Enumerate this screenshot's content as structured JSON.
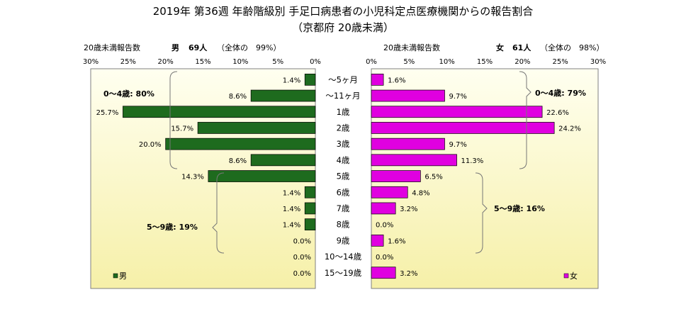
{
  "title": "2019年 第36週 年齢階級別 手足口病患者の小児科定点医療機関からの報告割合",
  "subtitle": "（京都府 20歳未満）",
  "colors": {
    "male": "#1e6b1e",
    "female": "#e000e0",
    "panel_bg_top": "#fffff0",
    "panel_bg_bottom": "#f6f0a8"
  },
  "male_header": {
    "label": "20歳未満報告数",
    "sex": "男",
    "count": "69人",
    "share": "（全体の　99%）"
  },
  "female_header": {
    "label": "20歳未満報告数",
    "sex": "女",
    "count": "61人",
    "share": "（全体の　98%）"
  },
  "male_group_0_4": "0～4歳: 80%",
  "male_group_5_9": "5～9歳: 19%",
  "female_group_0_4": "0～4歳: 79%",
  "female_group_5_9": "5～9歳: 16%",
  "legend_male": "男",
  "legend_female": "女",
  "chart_data": {
    "type": "bar",
    "orientation": "horizontal",
    "layout": "population-pyramid",
    "categories": [
      "～5ヶ月",
      "～11ヶ月",
      "1歳",
      "2歳",
      "3歳",
      "4歳",
      "5歳",
      "6歳",
      "7歳",
      "8歳",
      "9歳",
      "10～14歳",
      "15～19歳"
    ],
    "series": [
      {
        "name": "男",
        "values": [
          1.4,
          8.6,
          25.7,
          15.7,
          20.0,
          8.6,
          14.3,
          1.4,
          1.4,
          1.4,
          0.0,
          0.0,
          0.0
        ],
        "labels": [
          "1.4%",
          "8.6%",
          "25.7%",
          "15.7%",
          "20.0%",
          "8.6%",
          "14.3%",
          "1.4%",
          "1.4%",
          "1.4%",
          "0.0%",
          "0.0%",
          "0.0%"
        ]
      },
      {
        "name": "女",
        "values": [
          1.6,
          9.7,
          22.6,
          24.2,
          9.7,
          11.3,
          6.5,
          4.8,
          3.2,
          0.0,
          1.6,
          0.0,
          3.2
        ],
        "labels": [
          "1.6%",
          "9.7%",
          "22.6%",
          "24.2%",
          "9.7%",
          "11.3%",
          "6.5%",
          "4.8%",
          "3.2%",
          "0.0%",
          "1.6%",
          "0.0%",
          "3.2%"
        ]
      }
    ],
    "xlim": [
      0,
      30
    ],
    "male_ticks": [
      "30%",
      "25%",
      "20%",
      "15%",
      "10%",
      "5%",
      "0%"
    ],
    "female_ticks": [
      "0%",
      "5%",
      "10%",
      "15%",
      "20%",
      "25%",
      "30%"
    ],
    "grid": false,
    "legend": "bottom"
  }
}
